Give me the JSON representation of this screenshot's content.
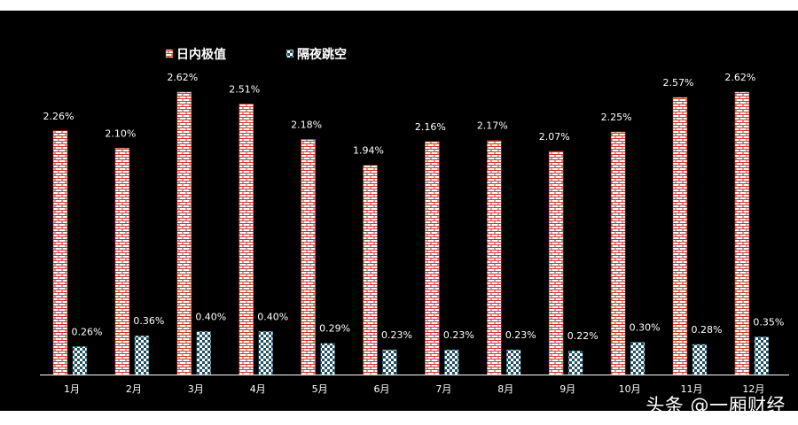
{
  "chart_data": {
    "type": "bar",
    "title": "",
    "xlabel": "",
    "ylabel": "",
    "categories": [
      "1月",
      "2月",
      "3月",
      "4月",
      "5月",
      "6月",
      "7月",
      "8月",
      "9月",
      "10月",
      "11月",
      "12月"
    ],
    "series": [
      {
        "name": "日内极值",
        "values": [
          2.26,
          2.1,
          2.62,
          2.51,
          2.18,
          1.94,
          2.16,
          2.17,
          2.07,
          2.25,
          2.57,
          2.62
        ],
        "color": "#f2c4c4",
        "pattern": "brick"
      },
      {
        "name": "隔夜跳空",
        "values": [
          0.26,
          0.36,
          0.4,
          0.4,
          0.29,
          0.23,
          0.23,
          0.23,
          0.22,
          0.3,
          0.28,
          0.35
        ],
        "color": "#1f4e5f",
        "pattern": "checker"
      }
    ],
    "data_labels": {
      "日内极值": [
        "2.26%",
        "2.10%",
        "2.62%",
        "2.51%",
        "2.18%",
        "1.94%",
        "2.16%",
        "2.17%",
        "2.07%",
        "2.25%",
        "2.57%",
        "2.62%"
      ],
      "隔夜跳空": [
        "0.26%",
        "0.36%",
        "0.40%",
        "0.40%",
        "0.29%",
        "0.23%",
        "0.23%",
        "0.23%",
        "0.22%",
        "0.30%",
        "0.28%",
        "0.35%"
      ]
    },
    "ylim": [
      0,
      2.8
    ],
    "grid": false,
    "legend_position": "top-left"
  },
  "watermark": "头条 @一厢财经",
  "colors": {
    "background": "#000000",
    "text": "#ffffff",
    "axis": "#ffffff"
  }
}
